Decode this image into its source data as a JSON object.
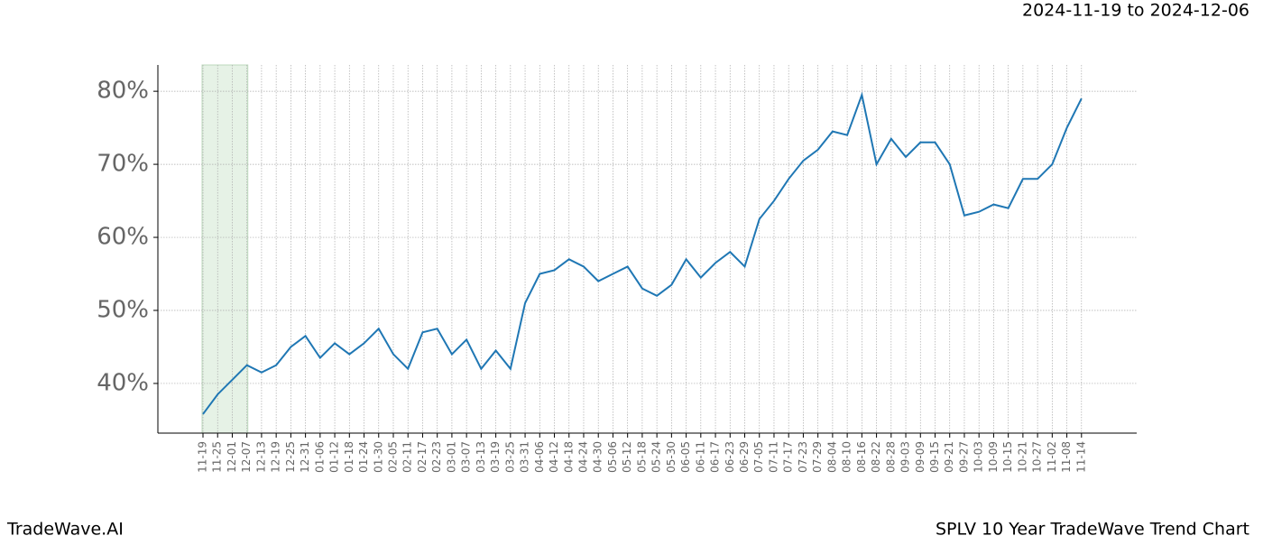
{
  "chart_data": {
    "type": "line",
    "title": "SPLV 10 Year TradeWave Trend Chart",
    "subtitle": "2024-11-19 to 2024-12-06",
    "brand": "TradeWave.AI",
    "categories": [
      "11-19",
      "11-25",
      "12-01",
      "12-07",
      "12-13",
      "12-19",
      "12-25",
      "12-31",
      "01-06",
      "01-12",
      "01-18",
      "01-24",
      "01-30",
      "02-05",
      "02-11",
      "02-17",
      "02-23",
      "03-01",
      "03-07",
      "03-13",
      "03-19",
      "03-25",
      "03-31",
      "04-06",
      "04-12",
      "04-18",
      "04-24",
      "04-30",
      "05-06",
      "05-12",
      "05-18",
      "05-24",
      "05-30",
      "06-05",
      "06-11",
      "06-17",
      "06-23",
      "06-29",
      "07-05",
      "07-11",
      "07-17",
      "07-23",
      "07-29",
      "08-04",
      "08-10",
      "08-16",
      "08-22",
      "08-28",
      "09-03",
      "09-09",
      "09-15",
      "09-21",
      "09-27",
      "10-03",
      "10-09",
      "10-15",
      "10-21",
      "10-27",
      "11-02",
      "11-08",
      "11-14"
    ],
    "values": [
      35.8,
      38.5,
      40.5,
      42.5,
      41.5,
      42.5,
      45,
      46.5,
      43.5,
      45.5,
      44,
      45.5,
      47.5,
      44,
      42,
      47,
      47.5,
      44,
      46,
      42,
      44.5,
      42,
      51,
      55,
      55.5,
      57,
      56,
      54,
      55,
      56,
      53,
      52,
      53.5,
      57,
      54.5,
      56.5,
      58,
      56,
      62.5,
      65,
      68,
      70.5,
      72,
      74.5,
      74,
      79.5,
      70,
      73.5,
      71,
      73,
      73,
      70,
      63,
      63.5,
      64.5,
      64,
      68,
      68,
      70,
      75,
      79
    ],
    "color": "#1f77b4",
    "shade": {
      "from": 0,
      "to": 3,
      "color": "#e6f2e6"
    },
    "ylim": [
      33.2,
      83.6
    ],
    "yticks": [
      {
        "value": 40,
        "label": "40%"
      },
      {
        "value": 50,
        "label": "50%"
      },
      {
        "value": 60,
        "label": "60%"
      },
      {
        "value": 70,
        "label": "70%"
      },
      {
        "value": 80,
        "label": "80%"
      }
    ],
    "grid": true
  }
}
